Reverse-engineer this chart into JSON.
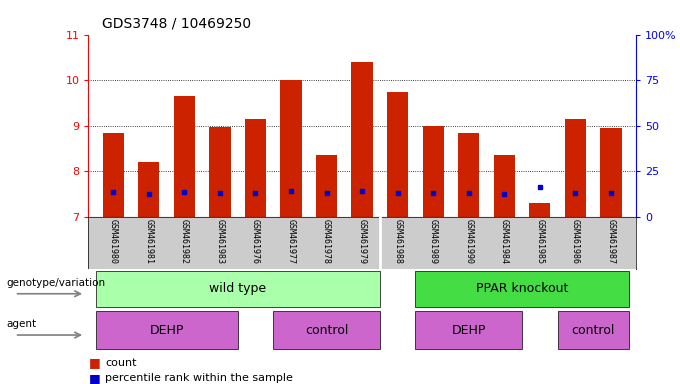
{
  "title": "GDS3748 / 10469250",
  "samples": [
    "GSM461980",
    "GSM461981",
    "GSM461982",
    "GSM461983",
    "GSM461976",
    "GSM461977",
    "GSM461978",
    "GSM461979",
    "GSM461988",
    "GSM461989",
    "GSM461990",
    "GSM461984",
    "GSM461985",
    "GSM461986",
    "GSM461987"
  ],
  "bar_heights": [
    8.85,
    8.2,
    9.65,
    8.98,
    9.15,
    10.0,
    8.35,
    10.4,
    9.75,
    9.0,
    8.85,
    8.35,
    7.3,
    9.15,
    8.95
  ],
  "blue_marker_y": [
    7.55,
    7.5,
    7.55,
    7.52,
    7.52,
    7.56,
    7.52,
    7.58,
    7.52,
    7.52,
    7.52,
    7.5,
    7.65,
    7.52,
    7.52
  ],
  "bar_color": "#cc2200",
  "blue_color": "#0000cc",
  "ymin": 7,
  "ymax": 11,
  "yticks": [
    7,
    8,
    9,
    10,
    11
  ],
  "right_yticks": [
    0,
    25,
    50,
    75,
    100
  ],
  "right_ytick_labels": [
    "0",
    "25",
    "50",
    "75",
    "100%"
  ],
  "genotype_labels": [
    "wild type",
    "PPAR knockout"
  ],
  "genotype_light_green": "#aaffaa",
  "genotype_dark_green": "#44dd44",
  "agent_labels": [
    "DEHP",
    "control",
    "DEHP",
    "control"
  ],
  "agent_color": "#cc66cc",
  "background_color": "#ffffff",
  "bar_width": 0.6,
  "legend_count_label": "count",
  "legend_pct_label": "percentile rank within the sample",
  "label_bg": "#cccccc"
}
